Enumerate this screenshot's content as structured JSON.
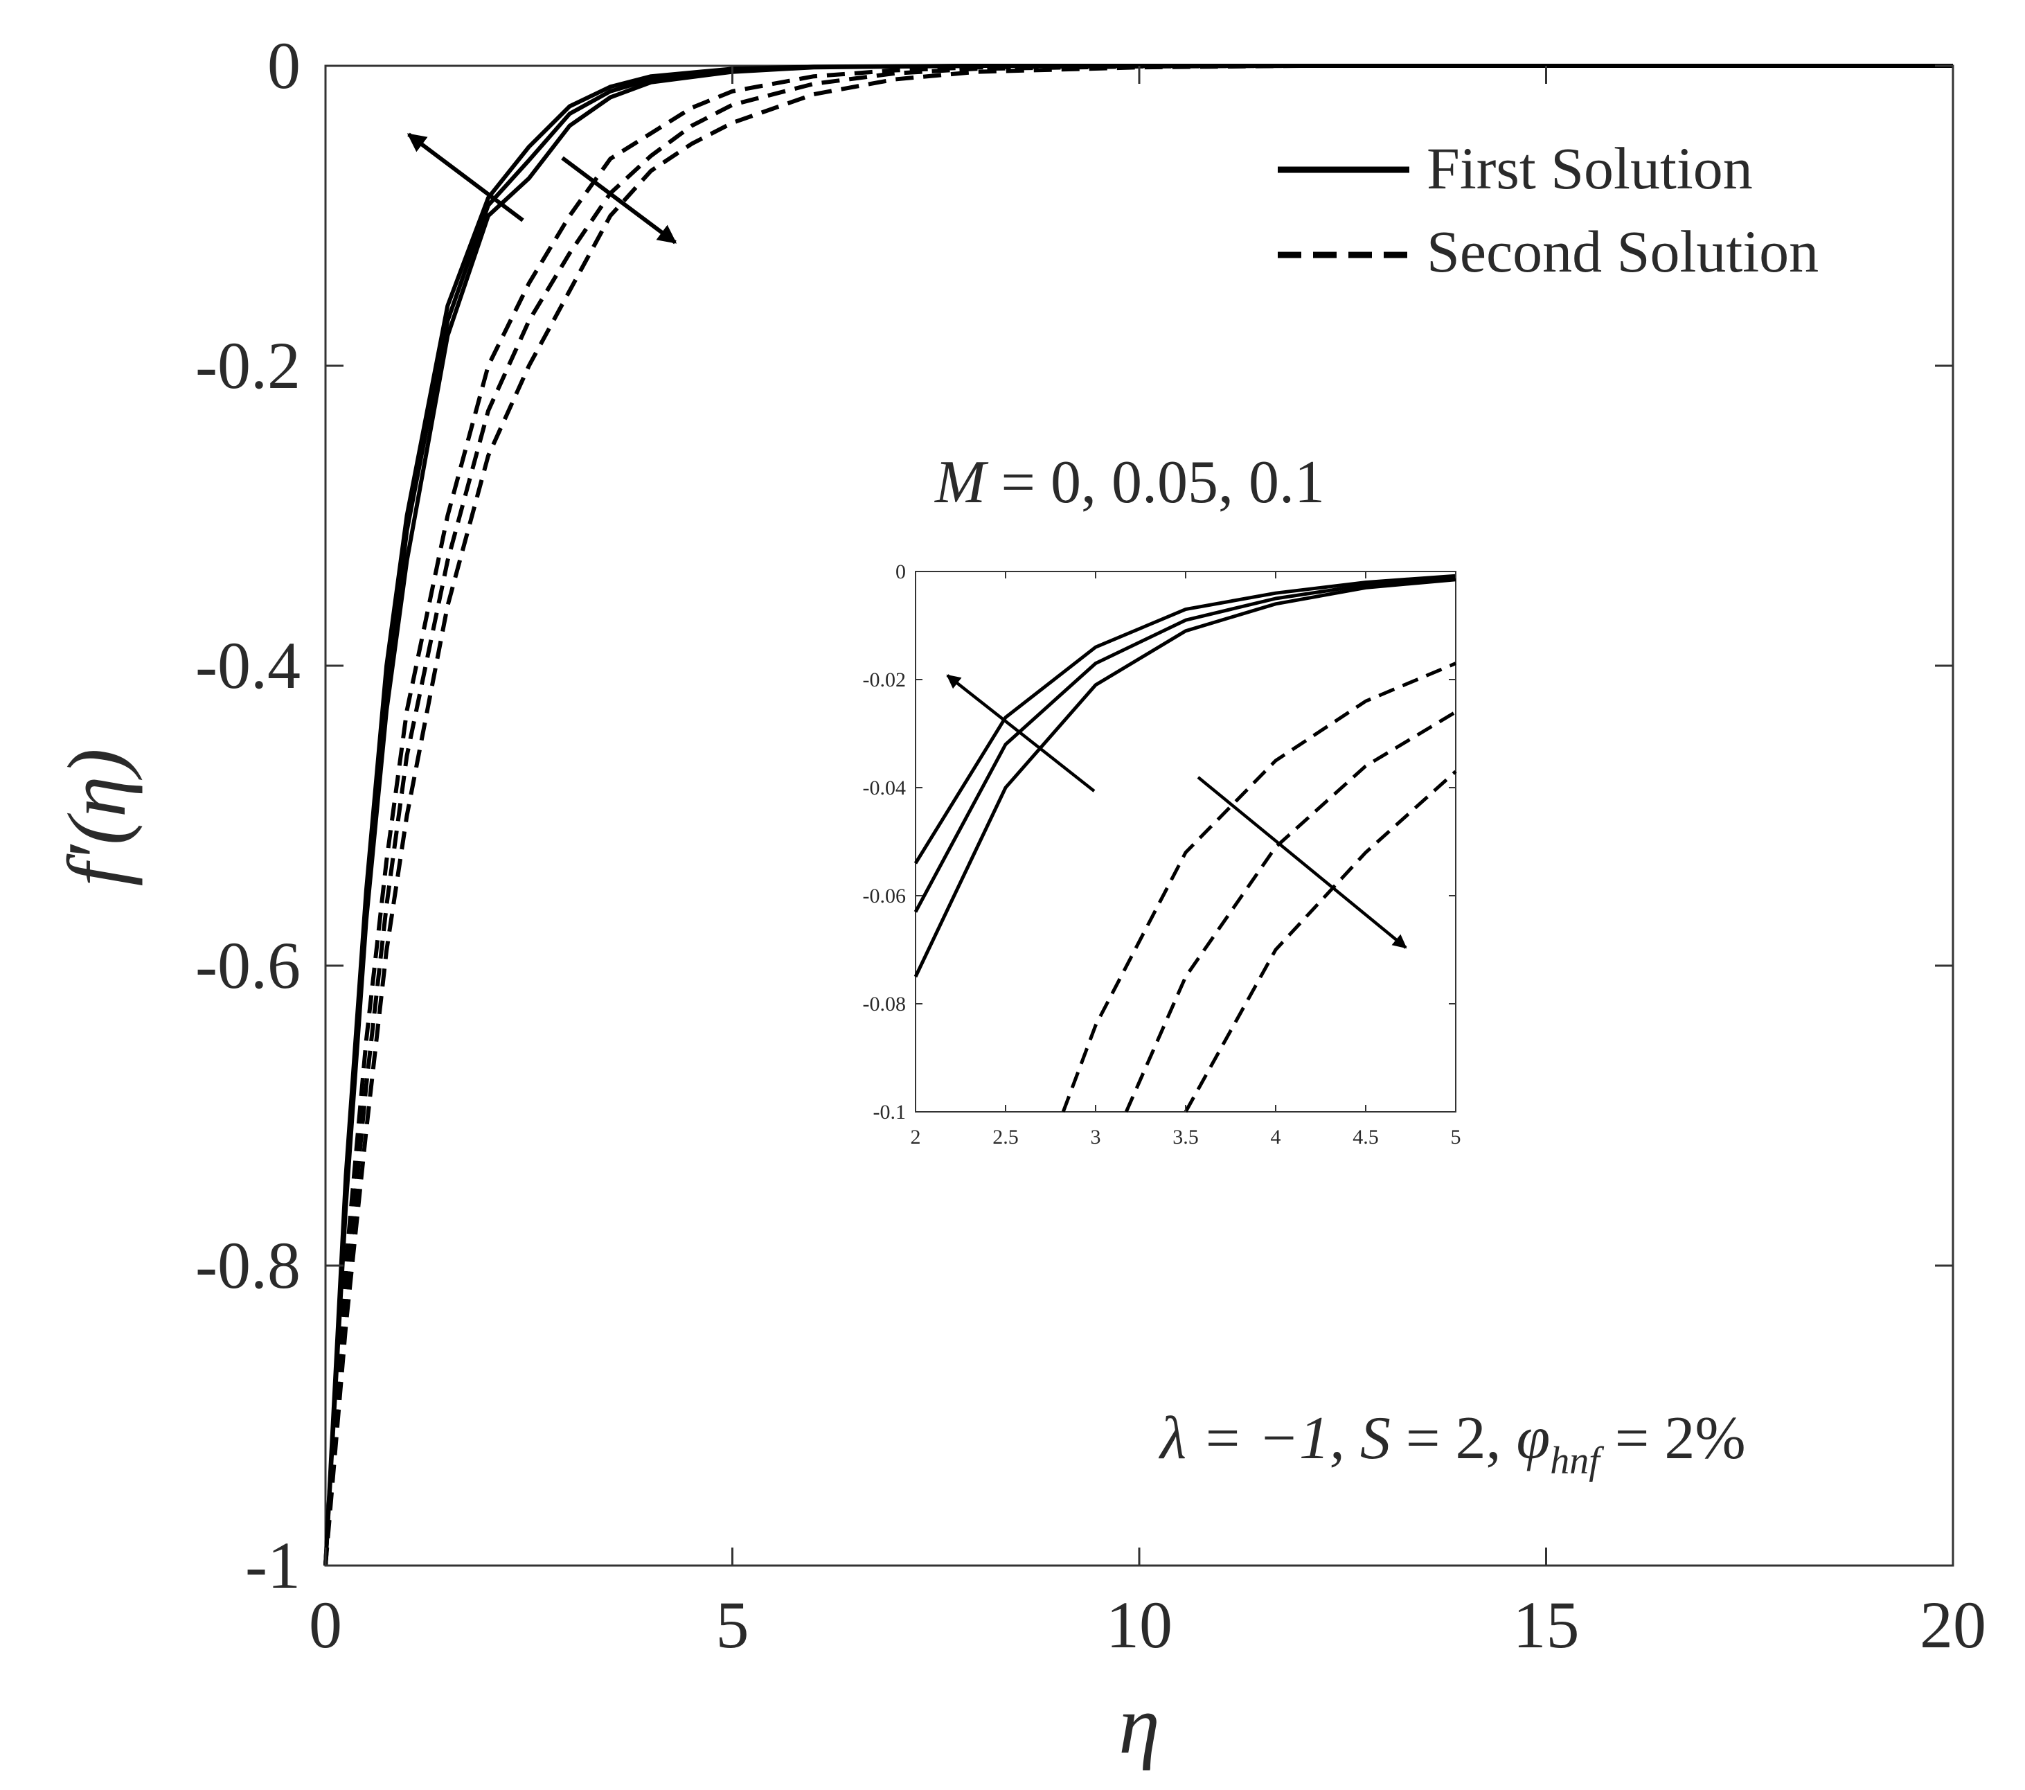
{
  "chart_data": [
    {
      "type": "line",
      "role": "main",
      "xlabel": "η",
      "ylabel": "f′(η)",
      "xlim": [
        0,
        20
      ],
      "ylim": [
        -1,
        0
      ],
      "xticks": [
        0,
        5,
        10,
        15,
        20
      ],
      "xtick_labels": [
        "0",
        "5",
        "10",
        "15",
        "20"
      ],
      "yticks": [
        0,
        -0.2,
        -0.4,
        -0.6,
        -0.8,
        -1
      ],
      "ytick_labels": [
        "0",
        "-0.2",
        "-0.4",
        "-0.6",
        "-0.8",
        "-1"
      ],
      "grid": false,
      "legend": {
        "position": "top-right",
        "entries": [
          {
            "label": "First Solution",
            "style": "solid"
          },
          {
            "label": "Second Solution",
            "style": "dashed"
          }
        ]
      },
      "series": [
        {
          "group": "first",
          "style": "solid",
          "x": [
            0,
            0.25,
            0.5,
            0.75,
            1,
            1.5,
            2,
            2.5,
            3,
            3.5,
            4,
            5,
            6,
            8,
            10,
            20
          ],
          "y": [
            -1,
            -0.74,
            -0.55,
            -0.4,
            -0.3,
            -0.16,
            -0.088,
            -0.054,
            -0.027,
            -0.014,
            -0.007,
            -0.002,
            -0.0006,
            0,
            0,
            0
          ]
        },
        {
          "group": "first",
          "style": "solid",
          "x": [
            0,
            0.25,
            0.5,
            0.75,
            1,
            1.5,
            2,
            2.5,
            3,
            3.5,
            4,
            5,
            6,
            8,
            10,
            20
          ],
          "y": [
            -1,
            -0.75,
            -0.56,
            -0.42,
            -0.31,
            -0.17,
            -0.093,
            -0.063,
            -0.032,
            -0.017,
            -0.009,
            -0.003,
            -0.0008,
            0,
            0,
            0
          ]
        },
        {
          "group": "first",
          "style": "solid",
          "x": [
            0,
            0.25,
            0.5,
            0.75,
            1,
            1.5,
            2,
            2.5,
            3,
            3.5,
            4,
            5,
            6,
            8,
            10,
            20
          ],
          "y": [
            -1,
            -0.76,
            -0.57,
            -0.43,
            -0.33,
            -0.18,
            -0.1,
            -0.075,
            -0.04,
            -0.021,
            -0.011,
            -0.004,
            -0.001,
            0,
            0,
            0
          ]
        },
        {
          "group": "second",
          "style": "dashed",
          "x": [
            0,
            0.25,
            0.5,
            0.75,
            1,
            1.5,
            2,
            2.5,
            3,
            3.5,
            4,
            4.5,
            5,
            6,
            7,
            8,
            10,
            12,
            20
          ],
          "y": [
            -1,
            -0.8,
            -0.65,
            -0.53,
            -0.43,
            -0.3,
            -0.2,
            -0.145,
            -0.1,
            -0.062,
            -0.045,
            -0.028,
            -0.017,
            -0.007,
            -0.003,
            -0.001,
            0,
            0,
            0
          ]
        },
        {
          "group": "second",
          "style": "dashed",
          "x": [
            0,
            0.25,
            0.5,
            0.75,
            1,
            1.5,
            2,
            2.5,
            3,
            3.5,
            4,
            4.5,
            5,
            6,
            7,
            8,
            10,
            12,
            20
          ],
          "y": [
            -1,
            -0.82,
            -0.68,
            -0.56,
            -0.46,
            -0.33,
            -0.23,
            -0.17,
            -0.125,
            -0.085,
            -0.06,
            -0.04,
            -0.026,
            -0.012,
            -0.005,
            -0.002,
            -0.0004,
            0,
            0
          ]
        },
        {
          "group": "second",
          "style": "dashed",
          "x": [
            0,
            0.25,
            0.5,
            0.75,
            1,
            1.5,
            2,
            2.5,
            3,
            3.5,
            4,
            4.5,
            5,
            6,
            7,
            8,
            10,
            12,
            20
          ],
          "y": [
            -1,
            -0.84,
            -0.71,
            -0.59,
            -0.5,
            -0.36,
            -0.26,
            -0.2,
            -0.15,
            -0.1,
            -0.07,
            -0.052,
            -0.038,
            -0.019,
            -0.009,
            -0.004,
            -0.001,
            0,
            0
          ]
        }
      ],
      "annotations": {
        "parameter_label": {
          "lhs": "M",
          "rhs": "= 0, 0.05, 0.1"
        },
        "condition_label": {
          "lambda": "λ = −1, ",
          "s": "S",
          "s_rhs": " = 2, ",
          "phi": "φ",
          "phi_sub": "hnf",
          "phi_rhs": " = 2%"
        }
      }
    },
    {
      "type": "line",
      "role": "inset",
      "xlim": [
        2,
        5
      ],
      "ylim": [
        -0.1,
        0
      ],
      "xticks": [
        2,
        2.5,
        3,
        3.5,
        4,
        4.5,
        5
      ],
      "xtick_labels": [
        "2",
        "2.5",
        "3",
        "3.5",
        "4",
        "4.5",
        "5"
      ],
      "yticks": [
        0,
        -0.02,
        -0.04,
        -0.06,
        -0.08,
        -0.1
      ],
      "ytick_labels": [
        "0",
        "-0.02",
        "-0.04",
        "-0.06",
        "-0.08",
        "-0.1"
      ],
      "grid": false,
      "series": [
        {
          "group": "first",
          "style": "solid",
          "x": [
            2,
            2.5,
            3,
            3.5,
            4,
            4.5,
            5
          ],
          "y": [
            -0.054,
            -0.027,
            -0.014,
            -0.007,
            -0.004,
            -0.002,
            -0.0008
          ]
        },
        {
          "group": "first",
          "style": "solid",
          "x": [
            2,
            2.5,
            3,
            3.5,
            4,
            4.5,
            5
          ],
          "y": [
            -0.063,
            -0.032,
            -0.017,
            -0.009,
            -0.005,
            -0.0025,
            -0.0011
          ]
        },
        {
          "group": "first",
          "style": "solid",
          "x": [
            2,
            2.5,
            3,
            3.5,
            4,
            4.5,
            5
          ],
          "y": [
            -0.075,
            -0.04,
            -0.021,
            -0.011,
            -0.006,
            -0.003,
            -0.0015
          ]
        },
        {
          "group": "second",
          "style": "dashed",
          "x": [
            2.82,
            3,
            3.5,
            4,
            4.5,
            5
          ],
          "y": [
            -0.1,
            -0.084,
            -0.052,
            -0.035,
            -0.024,
            -0.017
          ]
        },
        {
          "group": "second",
          "style": "dashed",
          "x": [
            3.17,
            3.5,
            4,
            4.5,
            5
          ],
          "y": [
            -0.1,
            -0.075,
            -0.051,
            -0.036,
            -0.026
          ]
        },
        {
          "group": "second",
          "style": "dashed",
          "x": [
            3.5,
            4,
            4.5,
            5
          ],
          "y": [
            -0.1,
            -0.07,
            -0.052,
            -0.037
          ]
        }
      ]
    }
  ]
}
